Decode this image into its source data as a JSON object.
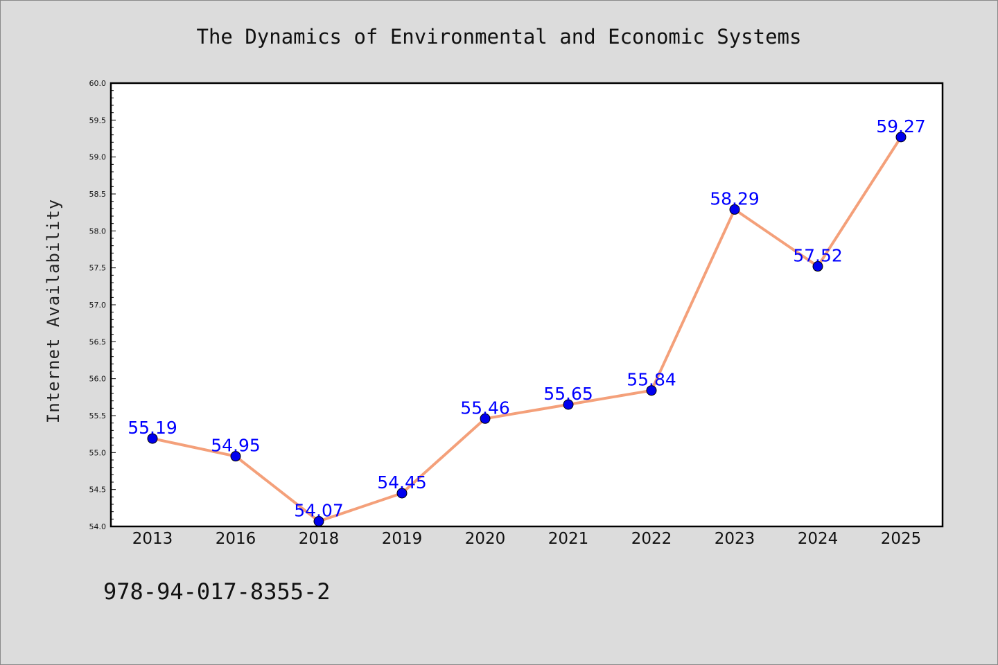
{
  "chart_data": {
    "type": "line",
    "title": "The Dynamics of Environmental and Economic Systems",
    "xlabel": "",
    "ylabel": "Internet Availability",
    "categories": [
      "2013",
      "2016",
      "2018",
      "2019",
      "2020",
      "2021",
      "2022",
      "2023",
      "2024",
      "2025"
    ],
    "series": [
      {
        "values": [
          55.19,
          54.95,
          54.07,
          54.45,
          55.46,
          55.65,
          55.84,
          58.29,
          57.52,
          59.27
        ],
        "data_labels": [
          "55.19",
          "54.95",
          "54.07",
          "54.45",
          "55.46",
          "55.65",
          "55.84",
          "58.29",
          "57.52",
          "59.27"
        ]
      }
    ],
    "ylim": [
      54.0,
      60.0
    ],
    "yticks": [
      "54.0",
      "54.5",
      "55.0",
      "55.5",
      "56.0",
      "56.5",
      "57.0",
      "57.5",
      "58.0",
      "58.5",
      "59.0",
      "59.5",
      "60.0"
    ],
    "grid": false,
    "colors": {
      "line": "#f4a07a",
      "marker": "#0000ee",
      "data_label": "#0000ff",
      "plot_background": "#ffffff",
      "figure_background": "#dcdcdc"
    }
  },
  "footer": {
    "text": "978-94-017-8355-2"
  }
}
